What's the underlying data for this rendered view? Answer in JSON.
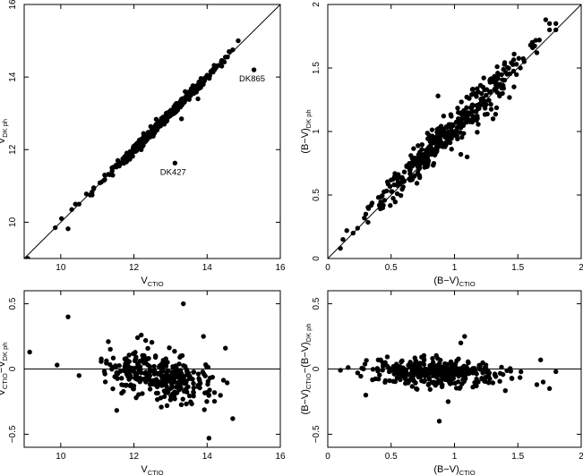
{
  "chart_data": [
    {
      "id": "a",
      "type": "scatter",
      "xlim": [
        9,
        16
      ],
      "ylim": [
        9,
        16
      ],
      "xticks": [
        10,
        12,
        14,
        16
      ],
      "yticks": [
        10,
        12,
        14,
        16
      ],
      "xlabel": {
        "main": "V",
        "sub": "CTIO"
      },
      "ylabel": {
        "main": "V",
        "sub": "DK ph"
      },
      "reference_line": "y = x",
      "grid": false,
      "annotations": [
        {
          "text": "DK865",
          "x": 15.28,
          "y": 14.2
        },
        {
          "text": "DK427",
          "x": 13.12,
          "y": 11.63
        }
      ],
      "points": [
        [
          9.1,
          9.0
        ],
        [
          9.85,
          9.85
        ],
        [
          10.2,
          9.82
        ],
        [
          15.28,
          14.2
        ],
        [
          13.12,
          11.63
        ],
        [
          13.3,
          12.85
        ],
        [
          13.75,
          13.4
        ],
        [
          10.02,
          10.1
        ],
        [
          10.3,
          10.35
        ],
        [
          10.5,
          10.5
        ],
        [
          10.7,
          10.78
        ],
        [
          10.9,
          10.95
        ],
        [
          11.1,
          11.1
        ],
        [
          11.3,
          11.32
        ],
        [
          11.5,
          11.55
        ],
        [
          11.7,
          11.75
        ],
        [
          11.9,
          11.95
        ],
        [
          12.1,
          12.15
        ],
        [
          12.3,
          12.28
        ],
        [
          12.5,
          12.52
        ],
        [
          12.7,
          12.72
        ],
        [
          12.9,
          12.95
        ],
        [
          13.1,
          13.12
        ],
        [
          13.3,
          13.35
        ],
        [
          13.5,
          13.52
        ],
        [
          13.7,
          13.75
        ],
        [
          13.9,
          13.95
        ],
        [
          14.1,
          14.15
        ],
        [
          14.3,
          14.32
        ],
        [
          14.5,
          14.55
        ],
        [
          14.7,
          14.75
        ],
        [
          14.85,
          15.0
        ],
        [
          10.4,
          10.5
        ],
        [
          10.8,
          10.75
        ],
        [
          11.2,
          11.3
        ],
        [
          11.6,
          11.55
        ],
        [
          12.0,
          12.1
        ],
        [
          12.4,
          12.35
        ],
        [
          12.8,
          12.9
        ],
        [
          13.2,
          13.2
        ],
        [
          13.6,
          13.7
        ],
        [
          14.0,
          14.05
        ],
        [
          14.4,
          14.3
        ],
        [
          14.6,
          14.7
        ],
        [
          12.2,
          12.0
        ],
        [
          11.4,
          11.5
        ],
        [
          13.4,
          13.6
        ],
        [
          13.8,
          13.7
        ]
      ],
      "scatter": {
        "n": 400,
        "xmin": 9.8,
        "xmax": 14.9,
        "spread": 0.06
      }
    },
    {
      "id": "b",
      "type": "scatter",
      "xlim": [
        0,
        2
      ],
      "ylim": [
        0,
        2
      ],
      "xticks": [
        0,
        0.5,
        1,
        1.5,
        2
      ],
      "yticks": [
        0,
        0.5,
        1,
        1.5,
        2
      ],
      "xlabel": {
        "main": "(B−V)",
        "sub": "CTIO"
      },
      "ylabel": {
        "main": "(B−V)",
        "sub": "DK ph"
      },
      "reference_line": "y = x",
      "grid": false,
      "points": [
        [
          0.1,
          0.08
        ],
        [
          0.12,
          0.15
        ],
        [
          0.15,
          0.22
        ],
        [
          1.75,
          1.85
        ],
        [
          1.8,
          1.8
        ],
        [
          1.72,
          1.88
        ],
        [
          1.67,
          1.72
        ],
        [
          1.65,
          1.62
        ],
        [
          1.6,
          1.68
        ],
        [
          1.55,
          1.55
        ],
        [
          1.52,
          1.5
        ],
        [
          0.87,
          1.28
        ],
        [
          1.05,
          0.82
        ],
        [
          1.1,
          0.8
        ],
        [
          1.75,
          1.8
        ],
        [
          1.8,
          1.85
        ],
        [
          0.2,
          0.2
        ],
        [
          0.3,
          0.35
        ]
      ],
      "scatter": {
        "n": 400,
        "xmin": 0.08,
        "xmax": 1.78,
        "spread": 0.08
      }
    },
    {
      "id": "c",
      "type": "scatter",
      "xlim": [
        9,
        16
      ],
      "ylim": [
        -0.6,
        0.6
      ],
      "xticks": [
        10,
        12,
        14,
        16
      ],
      "yticks": [
        -0.5,
        0,
        0.5
      ],
      "xlabel": {
        "main": "V",
        "sub": "CTIO"
      },
      "ylabel": {
        "main": "V",
        "sub": "CTIO",
        "mid": "−V",
        "sub2": "DK ph"
      },
      "reference_line": "y = 0",
      "grid": false,
      "points": [
        [
          9.15,
          0.13
        ],
        [
          10.2,
          0.4
        ],
        [
          13.35,
          0.5
        ],
        [
          14.05,
          -0.53
        ],
        [
          12.1,
          0.24
        ],
        [
          12.2,
          0.26
        ],
        [
          14.5,
          0.16
        ],
        [
          13.9,
          0.25
        ],
        [
          11.3,
          0.21
        ],
        [
          9.9,
          0.03
        ],
        [
          10.5,
          -0.05
        ],
        [
          14.7,
          -0.38
        ]
      ],
      "scatter": {
        "n": 350,
        "xmin": 9.9,
        "xmax": 14.8,
        "mean_start": 0.05,
        "mean_end": -0.15,
        "spread": 0.08
      }
    },
    {
      "id": "d",
      "type": "scatter",
      "xlim": [
        0,
        2
      ],
      "ylim": [
        -0.6,
        0.6
      ],
      "xticks": [
        0,
        0.5,
        1,
        1.5,
        2
      ],
      "yticks": [
        -0.5,
        0,
        0.5
      ],
      "xlabel": {
        "main": "(B−V)",
        "sub": "CTIO"
      },
      "ylabel": {
        "main": "(B−V)",
        "sub": "CTIO",
        "mid": "−(B−V)",
        "sub2": "DK ph"
      },
      "reference_line": "y = 0",
      "grid": false,
      "points": [
        [
          0.88,
          -0.4
        ],
        [
          1.08,
          0.25
        ],
        [
          1.05,
          0.2
        ],
        [
          1.68,
          0.07
        ],
        [
          1.8,
          -0.02
        ],
        [
          1.7,
          -0.1
        ],
        [
          1.75,
          -0.15
        ],
        [
          1.65,
          -0.12
        ],
        [
          0.95,
          -0.25
        ],
        [
          0.3,
          -0.2
        ],
        [
          0.1,
          -0.01
        ]
      ],
      "scatter": {
        "n": 380,
        "xmin": 0.1,
        "xmax": 1.6,
        "mean_start": 0.0,
        "mean_end": -0.05,
        "spread": 0.05
      }
    }
  ]
}
